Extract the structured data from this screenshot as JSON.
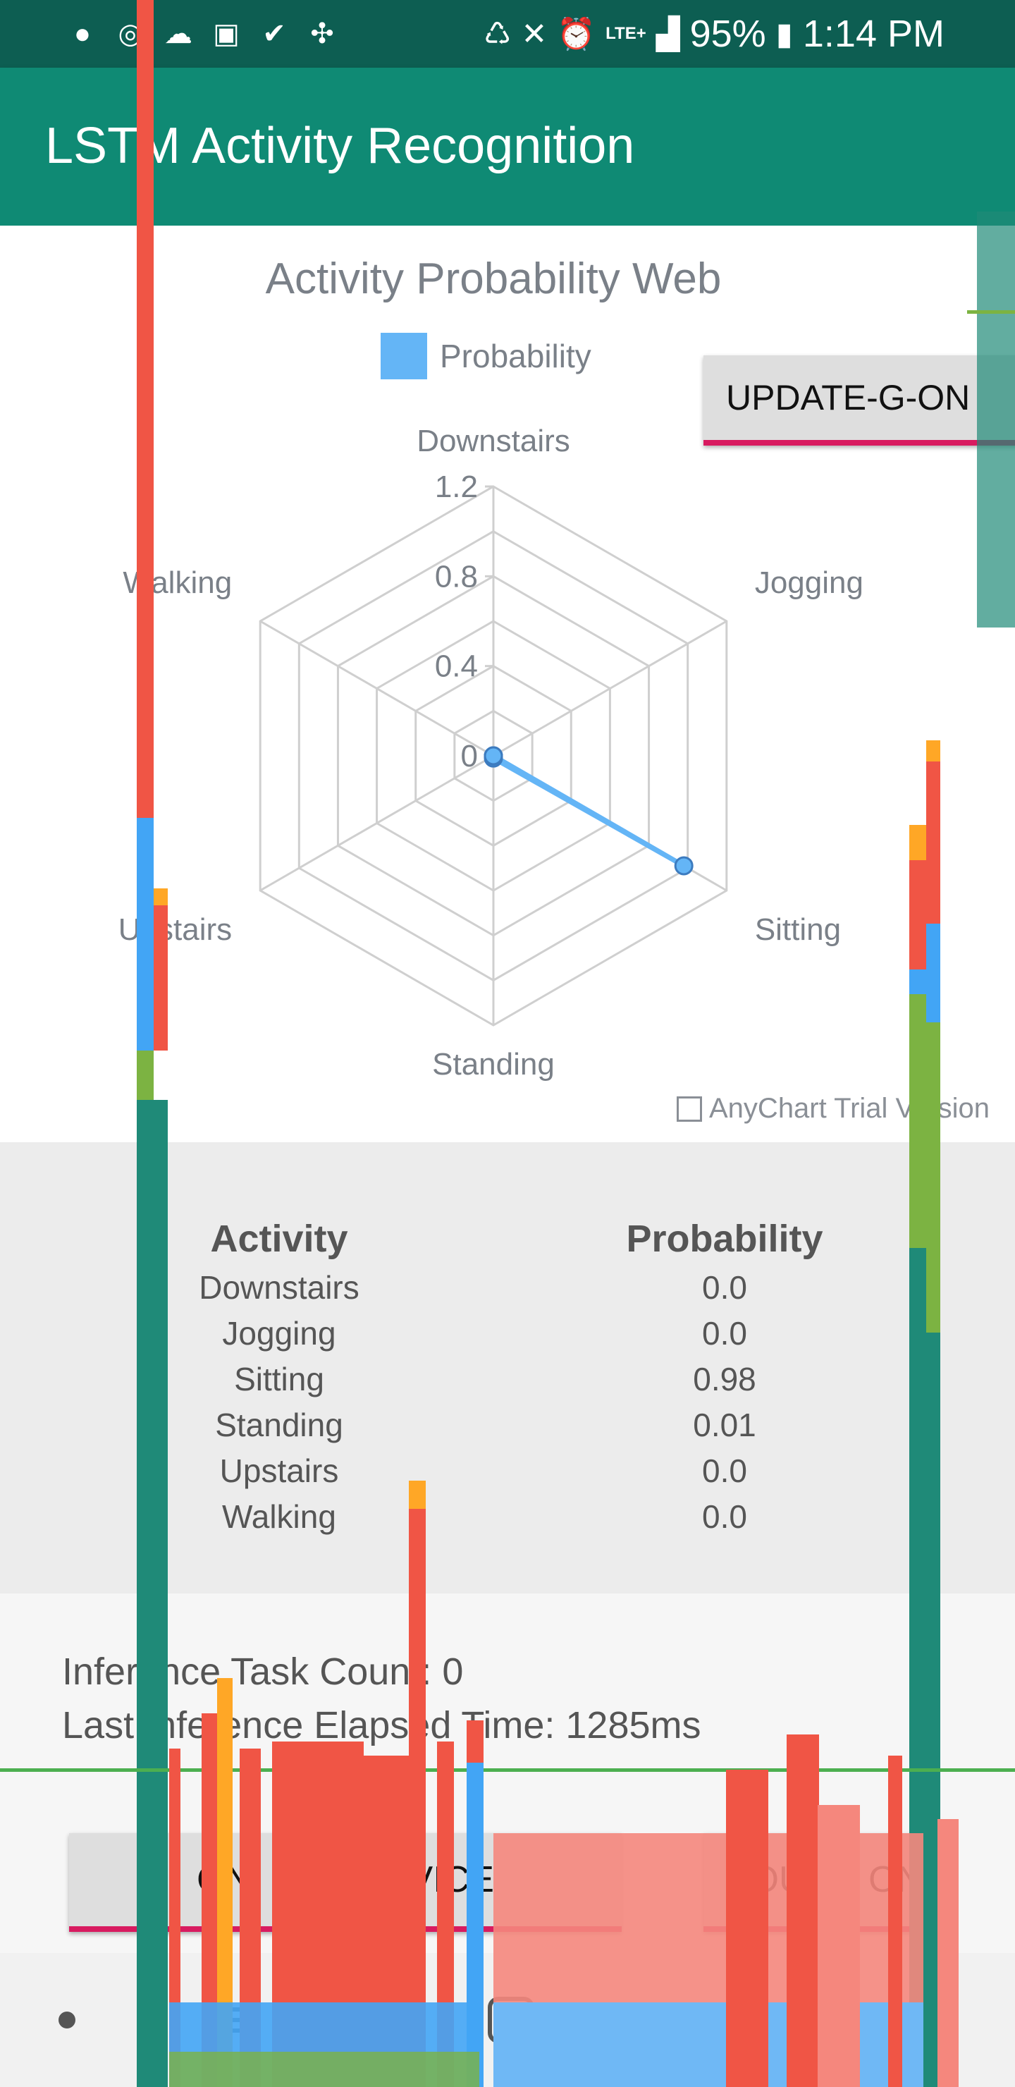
{
  "status_bar": {
    "left_icons": [
      "spotify-icon",
      "instagram-icon",
      "weather-icon",
      "gallery-icon",
      "check-icon",
      "apps-icon"
    ],
    "right_icons": [
      "recycle-icon",
      "vibrate-icon",
      "alarm-icon"
    ],
    "network": "LTE+",
    "battery": "95%",
    "time": "1:14 PM"
  },
  "app_bar": {
    "title": "LSTM Activity Recognition"
  },
  "chart_data": {
    "type": "radar",
    "title": "Activity Probability Web",
    "legend": [
      {
        "name": "Probability",
        "color": "#64b5f6"
      }
    ],
    "categories": [
      "Downstairs",
      "Jogging",
      "Sitting",
      "Standing",
      "Upstairs",
      "Walking"
    ],
    "series": [
      {
        "name": "Probability",
        "values": [
          0.0,
          0.0,
          0.98,
          0.01,
          0.0,
          0.0
        ]
      }
    ],
    "ylim": [
      0,
      1.2
    ],
    "ticks": [
      "0",
      "0.4",
      "0.8",
      "1.2"
    ],
    "grid": true,
    "watermark": "AnyChart Trial Version"
  },
  "update_button": {
    "label": "UPDATE-G-ON"
  },
  "table": {
    "headers": [
      "Activity",
      "Probability"
    ],
    "rows": [
      [
        "Downstairs",
        "0.0"
      ],
      [
        "Jogging",
        "0.0"
      ],
      [
        "Sitting",
        "0.98"
      ],
      [
        "Standing",
        "0.01"
      ],
      [
        "Upstairs",
        "0.0"
      ],
      [
        "Walking",
        "0.0"
      ]
    ]
  },
  "info": {
    "task_count": "Inference Task Count: 0",
    "elapsed": "Last Inference Elapsed Time: 1285ms"
  },
  "buttons": {
    "on_device": "ON    ON DEVICE",
    "sound": "SOUND ON"
  },
  "nav": {
    "items": [
      "home-dot",
      "recents-icon",
      "home-icon",
      "back-icon"
    ]
  },
  "colors": {
    "status_bar": "#0d5e52",
    "app_bar": "#0f8a74",
    "accent": "#d81b60",
    "series": "#64b5f6"
  }
}
